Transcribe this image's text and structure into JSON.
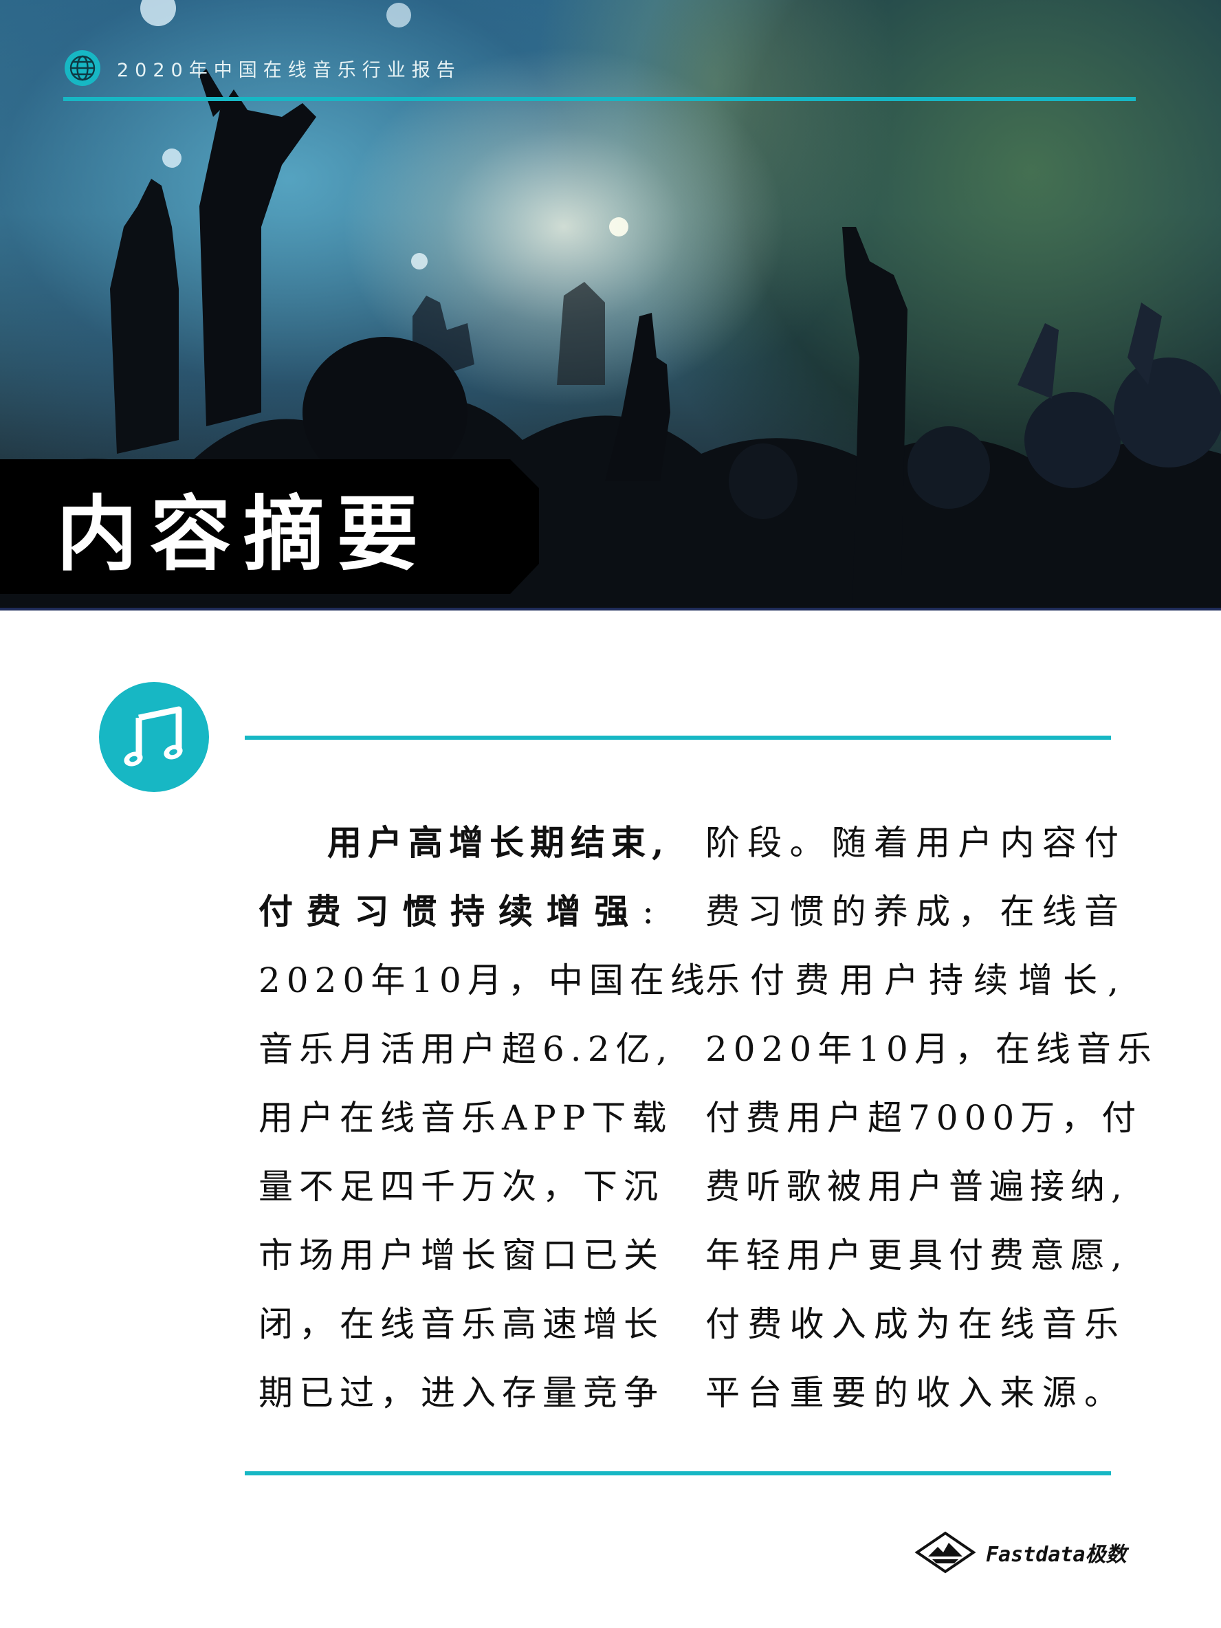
{
  "header": {
    "report_title": "2020年中国在线音乐行业报告",
    "icon": "globe-icon"
  },
  "hero": {
    "section_label": "内容摘要",
    "image": "concert-crowd-photo"
  },
  "section": {
    "icon": "music-note-icon",
    "left_column": [
      {
        "bold": "用户高增长期结束,",
        "text": ""
      },
      {
        "bold": "付费习惯持续增强",
        "text": ":"
      },
      {
        "bold": "",
        "text": "2020年10月，中国在线"
      },
      {
        "bold": "",
        "text": "音乐月活用户超6.2亿,"
      },
      {
        "bold": "",
        "text": "用户在线音乐APP下载"
      },
      {
        "bold": "",
        "text": "量不足四千万次，下沉"
      },
      {
        "bold": "",
        "text": "市场用户增长窗口已关"
      },
      {
        "bold": "",
        "text": "闭，在线音乐高速增长"
      },
      {
        "bold": "",
        "text": "期已过，进入存量竞争"
      }
    ],
    "right_column": [
      "阶段。随着用户内容付",
      "费习惯的养成，在线音",
      "乐付费用户持续增长,",
      "2020年10月，在线音乐",
      "付费用户超7000万，付",
      "费听歌被用户普遍接纳,",
      "年轻用户更具付费意愿,",
      "付费收入成为在线音乐",
      "平台重要的收入来源。"
    ]
  },
  "footer": {
    "brand": "Fastdata极数",
    "icon": "fastdata-logo-icon"
  },
  "colors": {
    "accent": "#17b7c4",
    "label_bg": "#000000"
  }
}
